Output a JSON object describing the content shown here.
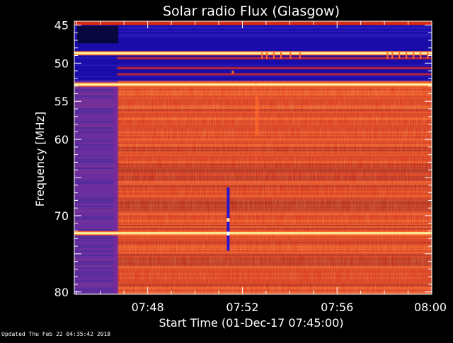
{
  "chart_data": {
    "type": "heatmap",
    "title": "Solar radio Flux (Glasgow)",
    "xlabel": "Start Time (01-Dec-17 07:45:00)",
    "ylabel": "Frequency [MHz]",
    "x_ticks": [
      "07:48",
      "07:52",
      "07:56",
      "08:00"
    ],
    "x_tick_minutes": [
      3,
      7,
      11,
      15
    ],
    "xlim_minutes": [
      -0.1,
      15
    ],
    "y_ticks": [
      45,
      50,
      55,
      60,
      65,
      70,
      75,
      80
    ],
    "y_tick_labels": [
      "45",
      "50",
      "55",
      "60",
      "",
      "70",
      "",
      "80"
    ],
    "ylim": [
      44.5,
      80.3
    ],
    "colors": {
      "background": "#000000",
      "intensity_low": "#1a0ca8",
      "intensity_mid_low": "#6a2e9e",
      "intensity_mid": "#d52a14",
      "intensity_high": "#ff6a2c",
      "intensity_max": "#fff5a0"
    },
    "regions": {
      "pre_onset_end_minute": 1.7,
      "low_intensity_band_mhz": [
        45,
        52.3
      ]
    },
    "bright_bands_mhz": [
      48.7,
      52.8,
      72.3
    ],
    "features": [
      {
        "name": "vertical-burst",
        "minute": 6.4,
        "f_range_mhz": [
          66.3,
          74.6
        ]
      },
      {
        "name": "faint-streak",
        "minute": 7.6,
        "f_range_mhz": [
          54.3,
          59.5
        ]
      }
    ]
  },
  "footer": {
    "text": "Updated Thu Feb 22 04:35:42 2018"
  }
}
